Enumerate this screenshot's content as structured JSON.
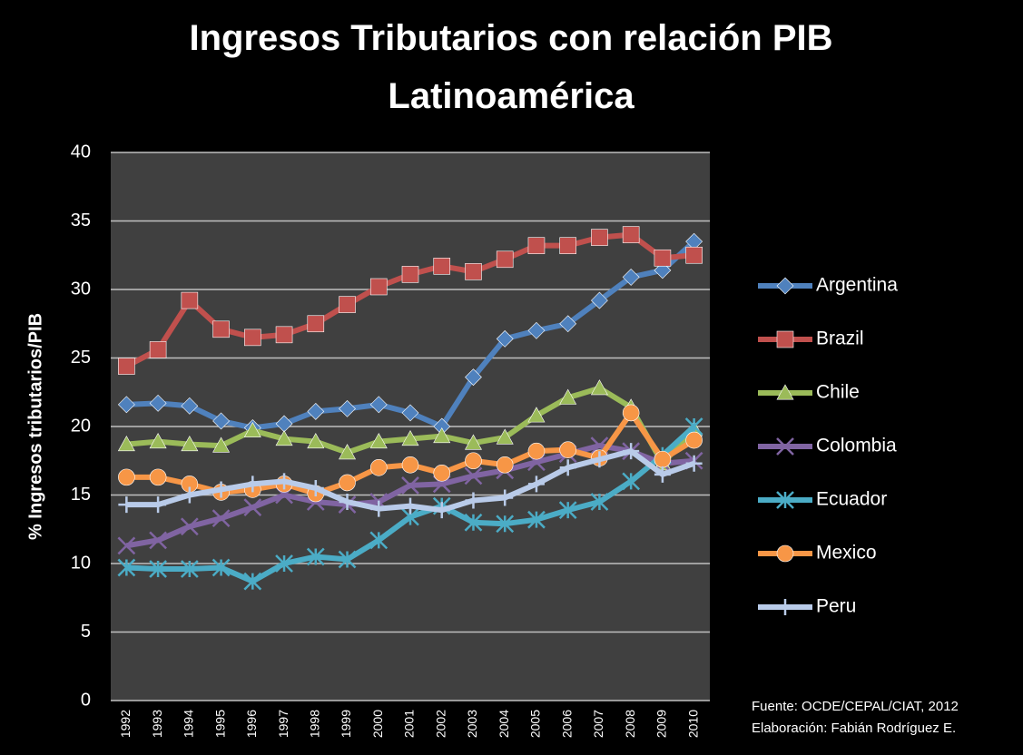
{
  "chart_data": {
    "type": "line",
    "title": "Ingresos Tributarios con relación PIB Latinoamérica",
    "y_label": "% Ingresos tributarios/PIB",
    "notes": [
      "Fuente: OCDE/CEPAL/CIAT, 2012",
      "Elaboración: Fabián Rodríguez E."
    ],
    "categories": [
      "1992",
      "1993",
      "1994",
      "1995",
      "1996",
      "1997",
      "1998",
      "1999",
      "2000",
      "2001",
      "2002",
      "2003",
      "2004",
      "2005",
      "2006",
      "2007",
      "2008",
      "2009",
      "2010"
    ],
    "ylim": [
      0,
      40
    ],
    "yticks": [
      0,
      5,
      10,
      15,
      20,
      25,
      30,
      35,
      40
    ],
    "grid": true,
    "legend": "right",
    "series": [
      {
        "name": "Argentina",
        "color": "#4f81bd",
        "marker": "diamond",
        "values": [
          21.6,
          21.7,
          21.5,
          20.4,
          19.9,
          20.2,
          21.1,
          21.3,
          21.6,
          21.0,
          20.0,
          23.6,
          26.4,
          27.0,
          27.5,
          29.2,
          30.9,
          31.4,
          33.5
        ]
      },
      {
        "name": "Brazil",
        "color": "#c0504d",
        "marker": "square",
        "values": [
          24.4,
          25.6,
          29.2,
          27.1,
          26.5,
          26.7,
          27.5,
          28.9,
          30.2,
          31.1,
          31.7,
          31.3,
          32.2,
          33.2,
          33.2,
          33.8,
          34.0,
          32.3,
          32.5
        ]
      },
      {
        "name": "Chile",
        "color": "#9bbb59",
        "marker": "triangle",
        "values": [
          18.7,
          18.9,
          18.7,
          18.6,
          19.7,
          19.1,
          18.9,
          18.1,
          18.9,
          19.1,
          19.3,
          18.8,
          19.2,
          20.8,
          22.1,
          22.8,
          21.4,
          17.3,
          19.8
        ]
      },
      {
        "name": "Colombia",
        "color": "#8064a2",
        "marker": "x",
        "values": [
          11.3,
          11.7,
          12.7,
          13.3,
          14.1,
          15.0,
          14.5,
          14.3,
          14.5,
          15.7,
          15.8,
          16.4,
          16.8,
          17.4,
          18.0,
          18.6,
          18.2,
          17.3,
          17.5
        ]
      },
      {
        "name": "Ecuador",
        "color": "#4bacc6",
        "marker": "asterisk",
        "values": [
          9.7,
          9.6,
          9.6,
          9.7,
          8.7,
          10.0,
          10.5,
          10.3,
          11.7,
          13.4,
          14.2,
          13.0,
          12.9,
          13.2,
          13.9,
          14.5,
          16.0,
          17.9,
          20.0
        ]
      },
      {
        "name": "Mexico",
        "color": "#f79646",
        "marker": "circle",
        "values": [
          16.3,
          16.3,
          15.8,
          15.2,
          15.4,
          15.8,
          15.1,
          15.9,
          17.0,
          17.2,
          16.6,
          17.5,
          17.2,
          18.2,
          18.3,
          17.7,
          21.0,
          17.6,
          19.0
        ]
      },
      {
        "name": "Peru",
        "color": "#b9cbe9",
        "marker": "plus",
        "values": [
          14.3,
          14.3,
          15.0,
          15.4,
          15.8,
          16.0,
          15.5,
          14.5,
          14.0,
          14.2,
          13.9,
          14.6,
          14.8,
          15.8,
          17.0,
          17.6,
          18.2,
          16.5,
          17.3
        ]
      }
    ]
  }
}
